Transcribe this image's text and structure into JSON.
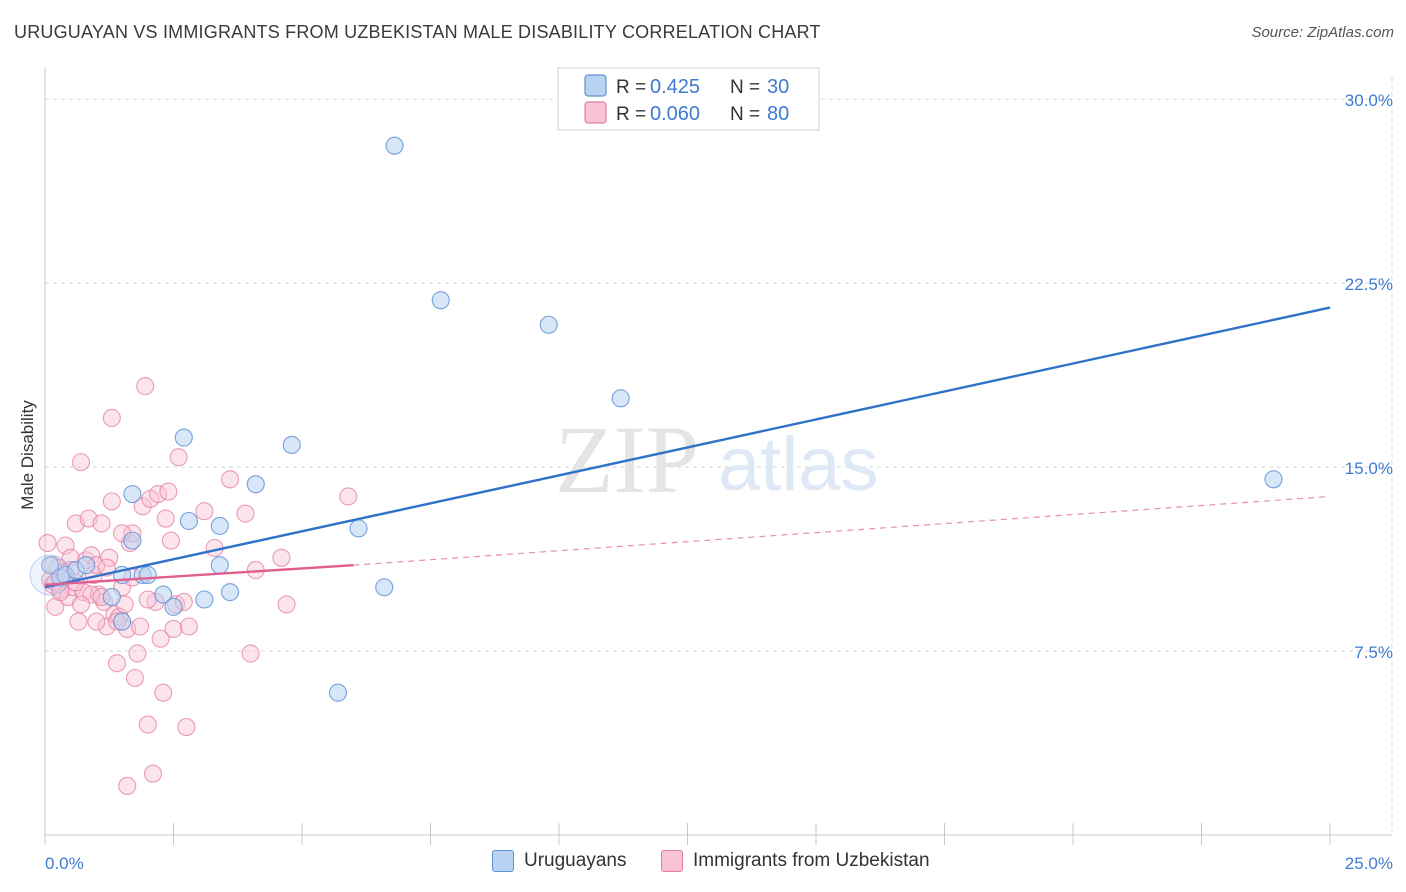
{
  "header": {
    "title": "URUGUAYAN VS IMMIGRANTS FROM UZBEKISTAN MALE DISABILITY CORRELATION CHART",
    "source": "Source: ZipAtlas.com"
  },
  "watermark": {
    "zip": "ZIP",
    "atlas": "atlas"
  },
  "colors": {
    "blue_fill": "#b8d3f2",
    "blue_stroke": "#5f93d6",
    "blue_line": "#2f72c8",
    "pink_fill": "#f8c4d5",
    "pink_stroke": "#e57ca1",
    "pink_line": "#e05e90",
    "tick_text": "#3f7bd0",
    "grid": "#d6d6d6"
  },
  "chart_data": {
    "type": "scatter",
    "title": "URUGUAYAN VS IMMIGRANTS FROM UZBEKISTAN MALE DISABILITY CORRELATION CHART",
    "xlabel": "",
    "ylabel": "Male Disability",
    "xlim": [
      0,
      25
    ],
    "ylim": [
      0,
      30.9
    ],
    "x_tick_labels": [
      "0.0%",
      "25.0%"
    ],
    "y_ticks": [
      7.5,
      15.0,
      22.5,
      30.0
    ],
    "y_tick_labels": [
      "7.5%",
      "15.0%",
      "22.5%",
      "30.0%"
    ],
    "grid": true,
    "legend": [
      {
        "r_label": "R =",
        "r_value": "0.425",
        "n_label": "N =",
        "n_value": "30"
      },
      {
        "r_label": "R =",
        "r_value": "0.060",
        "n_label": "N =",
        "n_value": "80"
      }
    ],
    "series": [
      {
        "name": "Uruguayans",
        "trend": {
          "x0": 0,
          "y0": 10.1,
          "x1": 25,
          "y1": 21.5
        },
        "points": [
          [
            0.1,
            11.0
          ],
          [
            0.3,
            10.5
          ],
          [
            0.4,
            10.6
          ],
          [
            0.6,
            10.8
          ],
          [
            0.8,
            11.0
          ],
          [
            1.3,
            9.7
          ],
          [
            1.5,
            10.6
          ],
          [
            1.7,
            13.9
          ],
          [
            1.7,
            12.0
          ],
          [
            1.9,
            10.6
          ],
          [
            2.0,
            10.6
          ],
          [
            1.5,
            8.7
          ],
          [
            2.3,
            9.8
          ],
          [
            2.5,
            9.3
          ],
          [
            2.7,
            16.2
          ],
          [
            2.8,
            12.8
          ],
          [
            3.1,
            9.6
          ],
          [
            3.4,
            12.6
          ],
          [
            3.4,
            11.0
          ],
          [
            3.6,
            9.9
          ],
          [
            4.1,
            14.3
          ],
          [
            4.8,
            15.9
          ],
          [
            5.7,
            5.8
          ],
          [
            6.1,
            12.5
          ],
          [
            6.6,
            10.1
          ],
          [
            6.8,
            28.1
          ],
          [
            7.7,
            21.8
          ],
          [
            9.8,
            20.8
          ],
          [
            11.2,
            17.8
          ],
          [
            23.9,
            14.5
          ]
        ]
      },
      {
        "name": "Immigrants from Uzbekistan",
        "trend_solid": {
          "x0": 0,
          "y0": 10.2,
          "x1": 6.0,
          "y1": 11.0
        },
        "trend_dashed": {
          "x0": 6.0,
          "y0": 11.0,
          "x1": 25,
          "y1": 13.8
        },
        "points": [
          [
            0.05,
            11.9
          ],
          [
            0.1,
            10.4
          ],
          [
            0.15,
            10.2
          ],
          [
            0.2,
            9.3
          ],
          [
            0.25,
            10.9
          ],
          [
            0.3,
            10.0
          ],
          [
            0.35,
            10.7
          ],
          [
            0.4,
            11.8
          ],
          [
            0.45,
            9.7
          ],
          [
            0.5,
            11.3
          ],
          [
            0.55,
            10.1
          ],
          [
            0.6,
            12.7
          ],
          [
            0.65,
            8.7
          ],
          [
            0.7,
            15.2
          ],
          [
            0.75,
            9.9
          ],
          [
            0.8,
            11.2
          ],
          [
            0.85,
            12.9
          ],
          [
            0.9,
            11.4
          ],
          [
            0.95,
            10.6
          ],
          [
            1.0,
            11.0
          ],
          [
            1.05,
            9.8
          ],
          [
            1.1,
            12.7
          ],
          [
            1.15,
            9.5
          ],
          [
            1.2,
            8.5
          ],
          [
            1.25,
            11.3
          ],
          [
            1.3,
            13.6
          ],
          [
            1.35,
            9.0
          ],
          [
            1.4,
            7.0
          ],
          [
            1.45,
            8.9
          ],
          [
            1.5,
            10.1
          ],
          [
            1.55,
            9.4
          ],
          [
            1.6,
            8.4
          ],
          [
            1.65,
            11.9
          ],
          [
            1.7,
            12.3
          ],
          [
            1.75,
            6.4
          ],
          [
            1.8,
            7.4
          ],
          [
            1.85,
            8.5
          ],
          [
            1.9,
            13.4
          ],
          [
            1.95,
            18.3
          ],
          [
            2.0,
            4.5
          ],
          [
            2.05,
            13.7
          ],
          [
            2.1,
            2.5
          ],
          [
            2.15,
            9.5
          ],
          [
            2.2,
            13.9
          ],
          [
            2.25,
            8.0
          ],
          [
            2.3,
            5.8
          ],
          [
            2.35,
            12.9
          ],
          [
            2.4,
            14.0
          ],
          [
            2.45,
            12.0
          ],
          [
            2.5,
            8.4
          ],
          [
            2.55,
            9.4
          ],
          [
            2.6,
            15.4
          ],
          [
            2.7,
            9.5
          ],
          [
            2.75,
            4.4
          ],
          [
            2.8,
            8.5
          ],
          [
            3.1,
            13.2
          ],
          [
            3.3,
            11.7
          ],
          [
            3.6,
            14.5
          ],
          [
            3.9,
            13.1
          ],
          [
            4.0,
            7.4
          ],
          [
            4.1,
            10.8
          ],
          [
            4.6,
            11.3
          ],
          [
            4.7,
            9.4
          ],
          [
            5.9,
            13.8
          ],
          [
            1.3,
            17.0
          ],
          [
            1.6,
            2.0
          ],
          [
            1.5,
            12.3
          ],
          [
            0.9,
            9.8
          ],
          [
            0.2,
            10.3
          ],
          [
            0.5,
            10.8
          ],
          [
            1.0,
            8.7
          ],
          [
            1.2,
            10.9
          ],
          [
            0.3,
            9.9
          ],
          [
            0.7,
            9.4
          ],
          [
            1.1,
            9.7
          ],
          [
            1.4,
            8.7
          ],
          [
            1.7,
            10.5
          ],
          [
            2.0,
            9.6
          ],
          [
            0.15,
            11.0
          ],
          [
            0.6,
            10.3
          ]
        ]
      }
    ]
  },
  "bottom_legend": [
    {
      "label": "Uruguayans"
    },
    {
      "label": "Immigrants from Uzbekistan"
    }
  ]
}
